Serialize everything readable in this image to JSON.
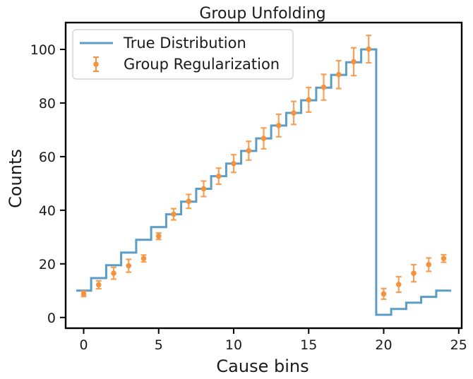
{
  "chart_data": {
    "type": "line",
    "title": "Group Unfolding",
    "xlabel": "Cause bins",
    "ylabel": "Counts",
    "xlim": [
      -1.2,
      25.2
    ],
    "ylim": [
      -4,
      110
    ],
    "xticks": [
      0,
      5,
      10,
      15,
      20,
      25
    ],
    "yticks": [
      0,
      20,
      40,
      60,
      80,
      100
    ],
    "grid": false,
    "legend_position": "top-left",
    "series": [
      {
        "name": "True Distribution",
        "kind": "step",
        "color": "#5b9dc5",
        "x": [
          0,
          1,
          2,
          3,
          4,
          5,
          6,
          7,
          8,
          9,
          10,
          11,
          12,
          13,
          14,
          15,
          16,
          17,
          18,
          19,
          20,
          21,
          22,
          23,
          24
        ],
        "values": [
          10,
          14.7,
          19.5,
          24.2,
          29,
          33.7,
          38.5,
          43.2,
          48,
          52.7,
          57.4,
          62.1,
          66.8,
          71.6,
          76.3,
          81,
          85.7,
          90.5,
          95.2,
          100,
          1,
          3.2,
          5.5,
          7.7,
          10
        ]
      },
      {
        "name": "Group Regularization",
        "kind": "errorbar",
        "color": "#f5923e",
        "x": [
          0,
          1,
          2,
          3,
          4,
          5,
          6,
          7,
          8,
          9,
          10,
          11,
          12,
          13,
          14,
          15,
          16,
          17,
          18,
          19,
          20,
          21,
          22,
          23,
          24
        ],
        "values": [
          8.8,
          12.2,
          16.5,
          19.3,
          22,
          30.3,
          38.5,
          43.3,
          48,
          52.7,
          57.4,
          62.2,
          66.8,
          71.6,
          76.3,
          81.2,
          85.9,
          90.6,
          95.4,
          100.1,
          8.8,
          12.3,
          16.5,
          19.7,
          22
        ],
        "errors": [
          1,
          1.5,
          2.2,
          2.4,
          1.3,
          1.2,
          2.1,
          2.6,
          2.9,
          3,
          3.3,
          3.5,
          3.9,
          4.2,
          4.3,
          4.6,
          4.8,
          5.2,
          5.2,
          5.1,
          2,
          2.9,
          3.2,
          2.5,
          1.4
        ]
      }
    ]
  }
}
